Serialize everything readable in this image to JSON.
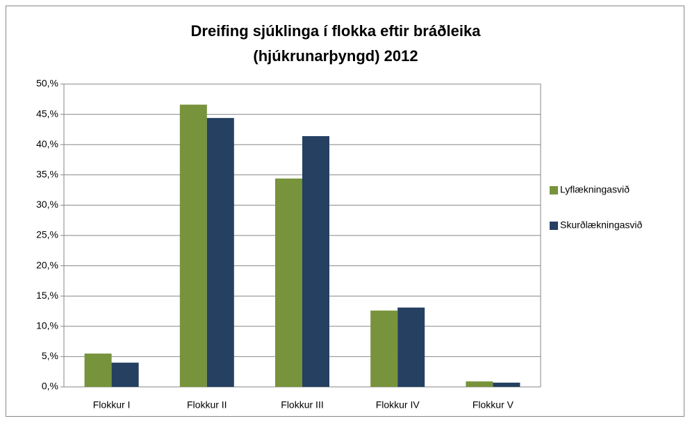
{
  "chart_data": {
    "type": "bar",
    "title": [
      "Dreifing sjúklinga í flokka eftir bráðleika",
      "(hjúkrunarþyngd) 2012"
    ],
    "categories": [
      "Flokkur I",
      "Flokkur II",
      "Flokkur III",
      "Flokkur IV",
      "Flokkur V"
    ],
    "series": [
      {
        "name": "Lyflækningasvið",
        "color": "#77933c",
        "values": [
          5.5,
          46.6,
          34.4,
          12.6,
          0.9
        ]
      },
      {
        "name": "Skurðlækningasvið",
        "color": "#254061",
        "values": [
          4.0,
          44.4,
          41.4,
          13.1,
          0.7
        ]
      }
    ],
    "ylim": [
      0,
      50
    ],
    "yticks": [
      {
        "value": 0,
        "label": "0,%"
      },
      {
        "value": 5,
        "label": "5,%"
      },
      {
        "value": 10,
        "label": "10,%"
      },
      {
        "value": 15,
        "label": "15,%"
      },
      {
        "value": 20,
        "label": "20,%"
      },
      {
        "value": 25,
        "label": "25,%"
      },
      {
        "value": 30,
        "label": "30,%"
      },
      {
        "value": 35,
        "label": "35,%"
      },
      {
        "value": 40,
        "label": "40,%"
      },
      {
        "value": 45,
        "label": "45,%"
      },
      {
        "value": 50,
        "label": "50,%"
      }
    ],
    "grid": true,
    "legend": "right"
  }
}
